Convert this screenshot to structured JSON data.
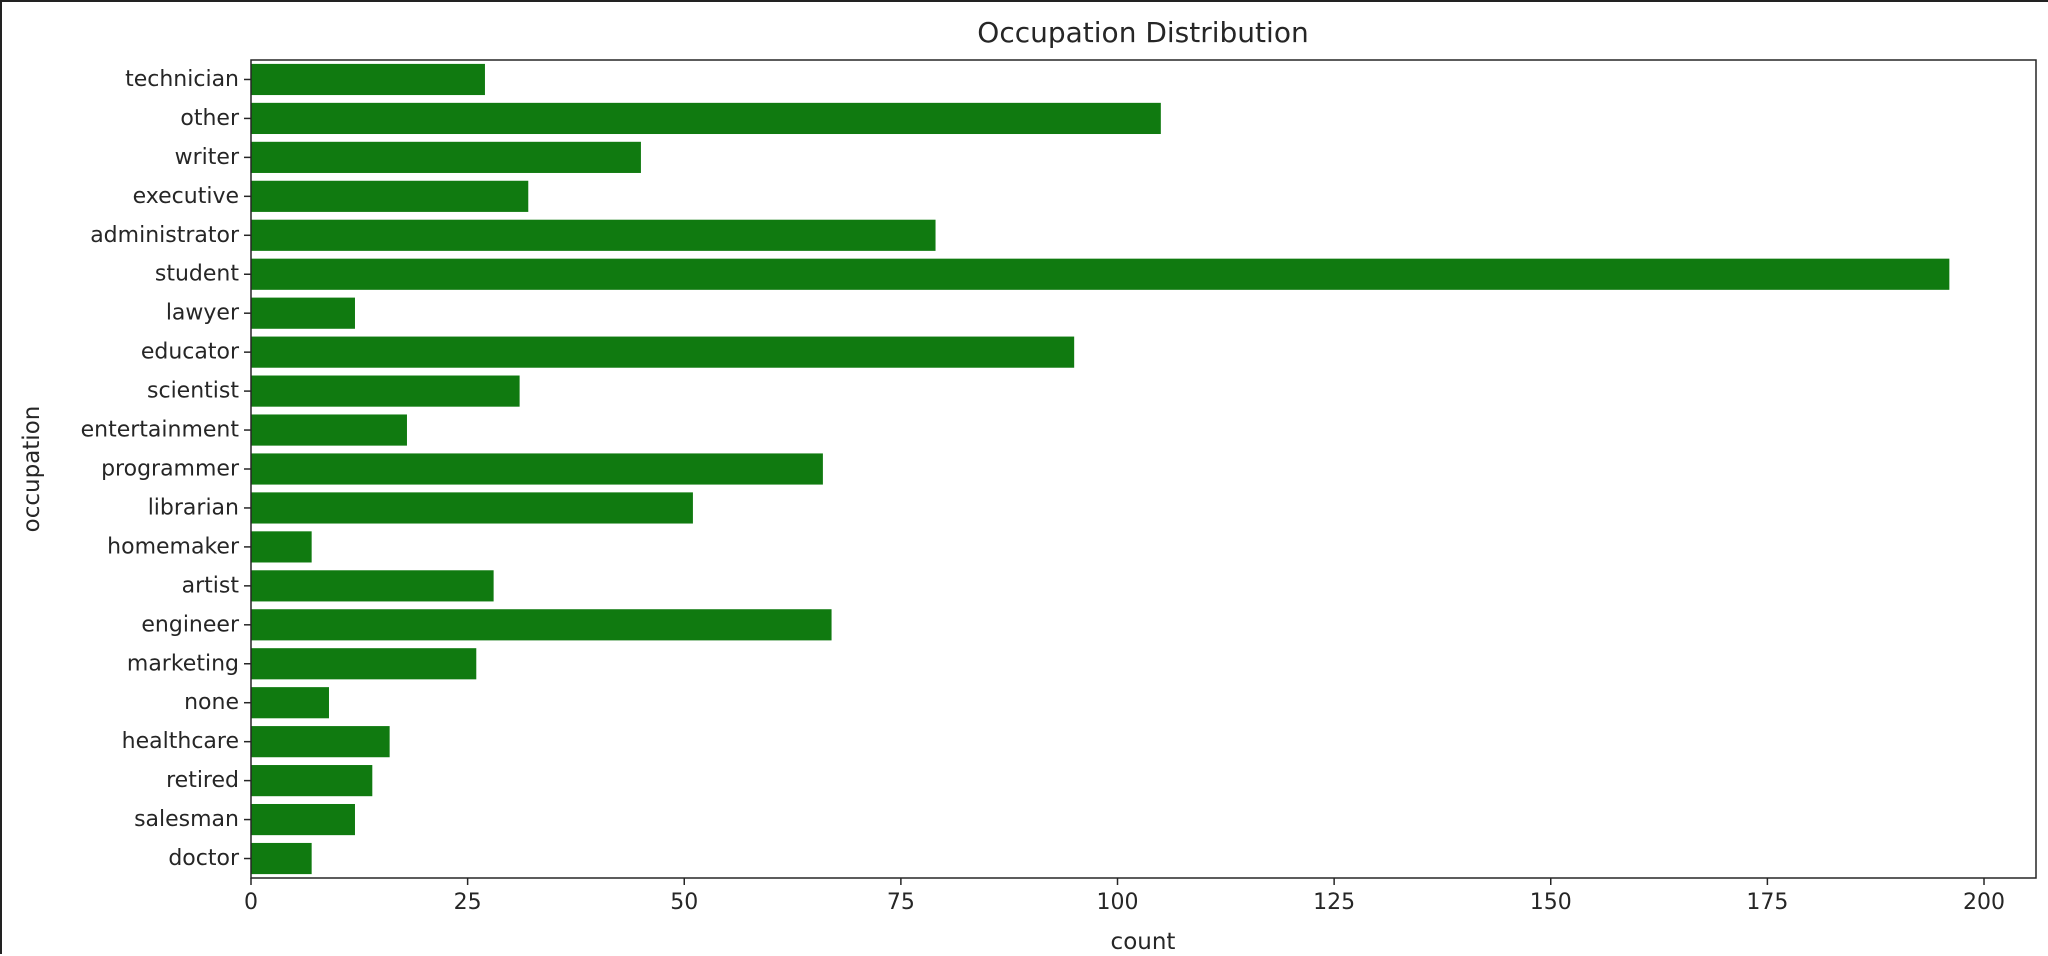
{
  "chart_data": {
    "type": "bar",
    "orientation": "horizontal",
    "title": "Occupation Distribution",
    "xlabel": "count",
    "ylabel": "occupation",
    "categories": [
      "technician",
      "other",
      "writer",
      "executive",
      "administrator",
      "student",
      "lawyer",
      "educator",
      "scientist",
      "entertainment",
      "programmer",
      "librarian",
      "homemaker",
      "artist",
      "engineer",
      "marketing",
      "none",
      "healthcare",
      "retired",
      "salesman",
      "doctor"
    ],
    "values": [
      27,
      105,
      45,
      32,
      79,
      196,
      12,
      95,
      31,
      18,
      66,
      51,
      7,
      28,
      67,
      26,
      9,
      16,
      14,
      12,
      7
    ],
    "xlim": [
      0,
      206
    ],
    "xticks": [
      0,
      25,
      50,
      75,
      100,
      125,
      150,
      175,
      200
    ],
    "bar_color": "#107a10",
    "grid": false,
    "legend": "none"
  }
}
